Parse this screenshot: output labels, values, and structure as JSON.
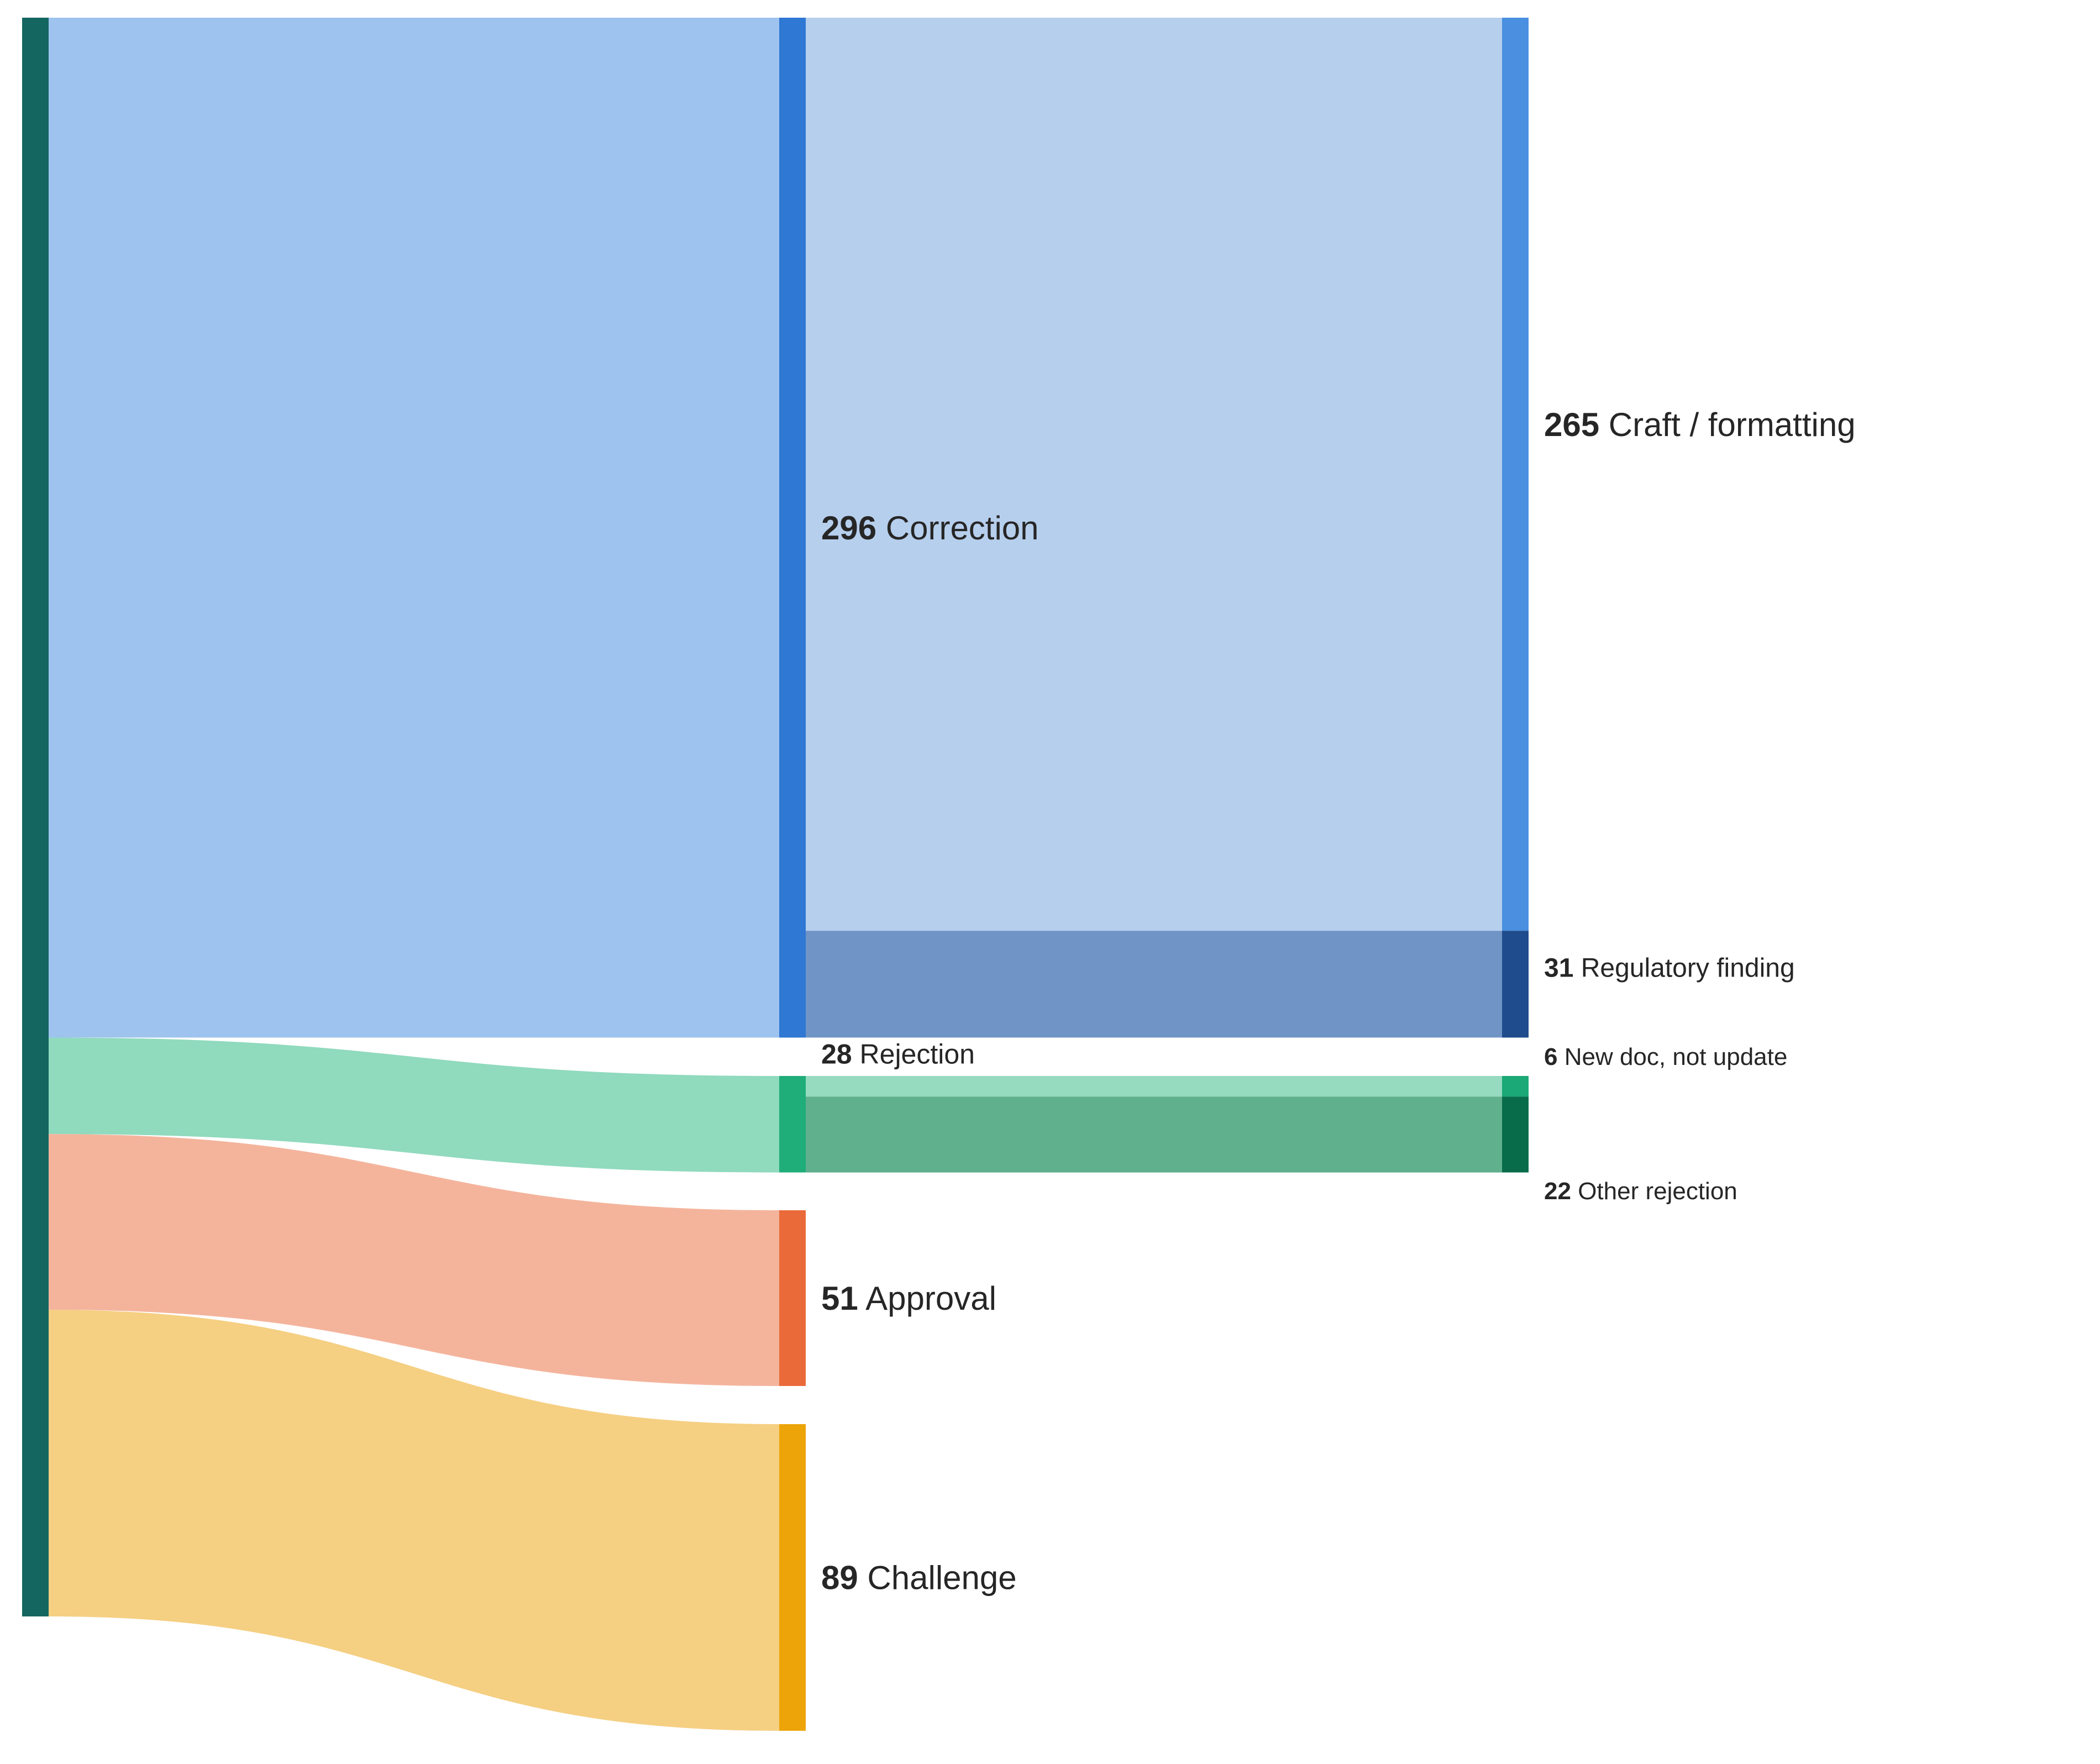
{
  "chart_data": {
    "type": "sankey",
    "title": "",
    "nodes": [
      {
        "id": "root",
        "label": "",
        "value": 464,
        "color": "#136760"
      },
      {
        "id": "correction",
        "label": "Correction",
        "value": 296,
        "color": "#2f78d4"
      },
      {
        "id": "rejection",
        "label": "Rejection",
        "value": 28,
        "color": "#1fad79"
      },
      {
        "id": "approval",
        "label": "Approval",
        "value": 51,
        "color": "#ea6a3a"
      },
      {
        "id": "challenge",
        "label": "Challenge",
        "value": 89,
        "color": "#eca409"
      },
      {
        "id": "craft",
        "label": "Craft / formatting",
        "value": 265,
        "color": "#4a8fe0"
      },
      {
        "id": "regulatory",
        "label": "Regulatory finding",
        "value": 31,
        "color": "#1e4c8c"
      },
      {
        "id": "newdoc",
        "label": "New doc, not update",
        "value": 6,
        "color": "#1aa977"
      },
      {
        "id": "otherrej",
        "label": "Other rejection",
        "value": 22,
        "color": "#086c4b"
      }
    ],
    "links": [
      {
        "source": "root",
        "target": "correction",
        "value": 296,
        "color": "#9ec3ee"
      },
      {
        "source": "root",
        "target": "rejection",
        "value": 28,
        "color": "#90dabe"
      },
      {
        "source": "root",
        "target": "approval",
        "value": 51,
        "color": "#f4b49c"
      },
      {
        "source": "root",
        "target": "challenge",
        "value": 89,
        "color": "#f5cf82"
      },
      {
        "source": "correction",
        "target": "craft",
        "value": 265,
        "color": "#b6cfed"
      },
      {
        "source": "correction",
        "target": "regulatory",
        "value": 31,
        "color": "#7094c6"
      },
      {
        "source": "rejection",
        "target": "newdoc",
        "value": 6,
        "color": "#96dabf"
      },
      {
        "source": "rejection",
        "target": "otherrej",
        "value": 22,
        "color": "#60b08e"
      }
    ]
  }
}
